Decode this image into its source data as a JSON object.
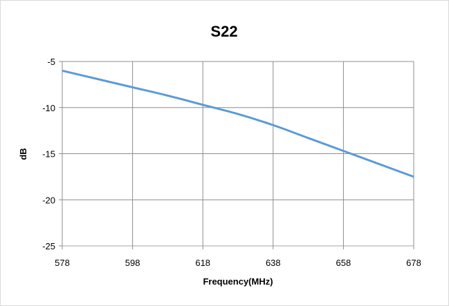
{
  "chart_data": {
    "type": "line",
    "title": "S22",
    "xlabel": "Frequency(MHz)",
    "ylabel": "dB",
    "xlim": [
      578,
      678
    ],
    "ylim": [
      -25,
      -5
    ],
    "xticks": [
      578,
      598,
      618,
      638,
      658,
      678
    ],
    "yticks": [
      -5,
      -10,
      -15,
      -20,
      -25
    ],
    "grid": true,
    "series": [
      {
        "color": "#5b9bd5",
        "x": [
          578,
          588,
          598,
          608,
          618,
          628,
          638,
          648,
          658,
          668,
          678
        ],
        "y": [
          -6.0,
          -6.9,
          -7.8,
          -8.7,
          -9.7,
          -10.7,
          -11.9,
          -13.3,
          -14.7,
          -16.1,
          -17.5
        ]
      }
    ]
  }
}
